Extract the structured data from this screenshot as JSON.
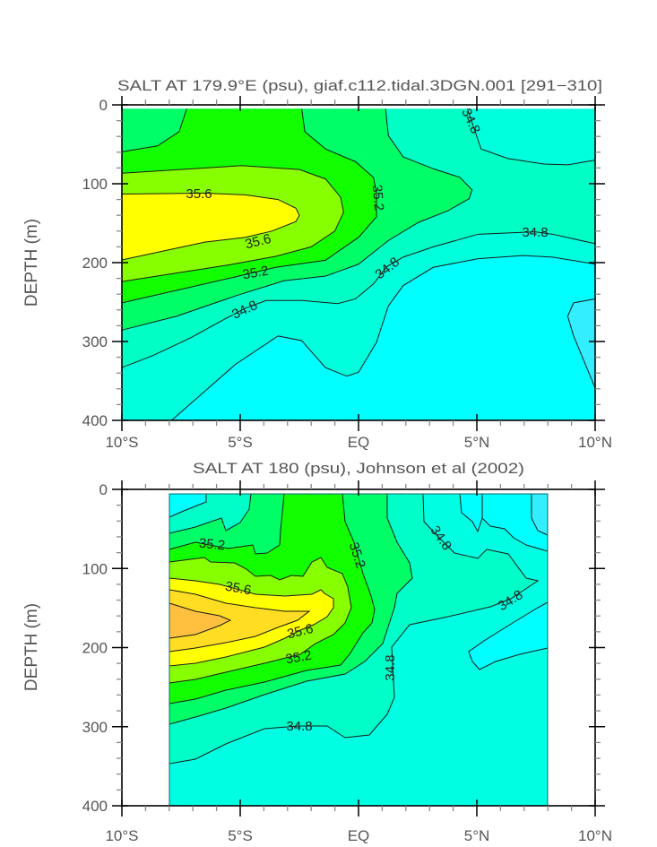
{
  "chart_data": [
    {
      "type": "heatmap",
      "subtype": "filled-contour",
      "title": "SALT AT 179.9°E (psu), giaf.c112.tidal.3DGN.001 [291−310]",
      "xlabel": "",
      "ylabel": "DEPTH (m)",
      "xlim": [
        -10,
        10
      ],
      "ylim": [
        400,
        0
      ],
      "x_tick_labels": [
        "10°S",
        "5°S",
        "EQ",
        "5°N",
        "10°N"
      ],
      "y_tick_labels": [
        "0",
        "100",
        "200",
        "300",
        "400"
      ],
      "contour_levels": [
        34.6,
        34.8,
        35.0,
        35.2,
        35.4,
        35.6
      ],
      "contour_labels": [
        "35.6",
        "35.6",
        "35.2",
        "35.2",
        "34.8",
        "34.8",
        "34.8",
        "34.8"
      ],
      "colors": {
        "lt_34_6": "#33eeff",
        "34_6": "#00ffff",
        "34_8": "#00ffdd",
        "35_0": "#00ffc4",
        "35_2": "#00ff66",
        "35_4": "#11ff00",
        "35_6": "#88ff00",
        "gt_35_6": "#ffff00"
      }
    },
    {
      "type": "heatmap",
      "subtype": "filled-contour",
      "title": "SALT AT 180 (psu), Johnson et al (2002)",
      "xlabel": "",
      "ylabel": "DEPTH (m)",
      "xlim": [
        -10,
        10
      ],
      "data_xrange": [
        -8,
        8
      ],
      "ylim": [
        400,
        0
      ],
      "x_tick_labels": [
        "10°S",
        "5°S",
        "EQ",
        "5°N",
        "10°N"
      ],
      "y_tick_labels": [
        "0",
        "100",
        "200",
        "300",
        "400"
      ],
      "contour_levels": [
        34.6,
        34.8,
        35.0,
        35.2,
        35.4,
        35.6,
        35.8,
        36.0
      ],
      "contour_labels": [
        "35.2",
        "35.2",
        "35.6",
        "35.6",
        "35.2",
        "34.8",
        "34.8",
        "34.8",
        "34.8"
      ],
      "colors": {
        "low": "#33eeff",
        "cyan": "#00ffff",
        "34_8": "#00ffe2",
        "35_0": "#00ffc8",
        "35_2": "#00ff66",
        "35_4": "#11ff00",
        "35_6": "#88ff00",
        "35_8": "#ffff00",
        "36_0": "#ffdd22",
        "max": "#ffc040"
      }
    }
  ]
}
